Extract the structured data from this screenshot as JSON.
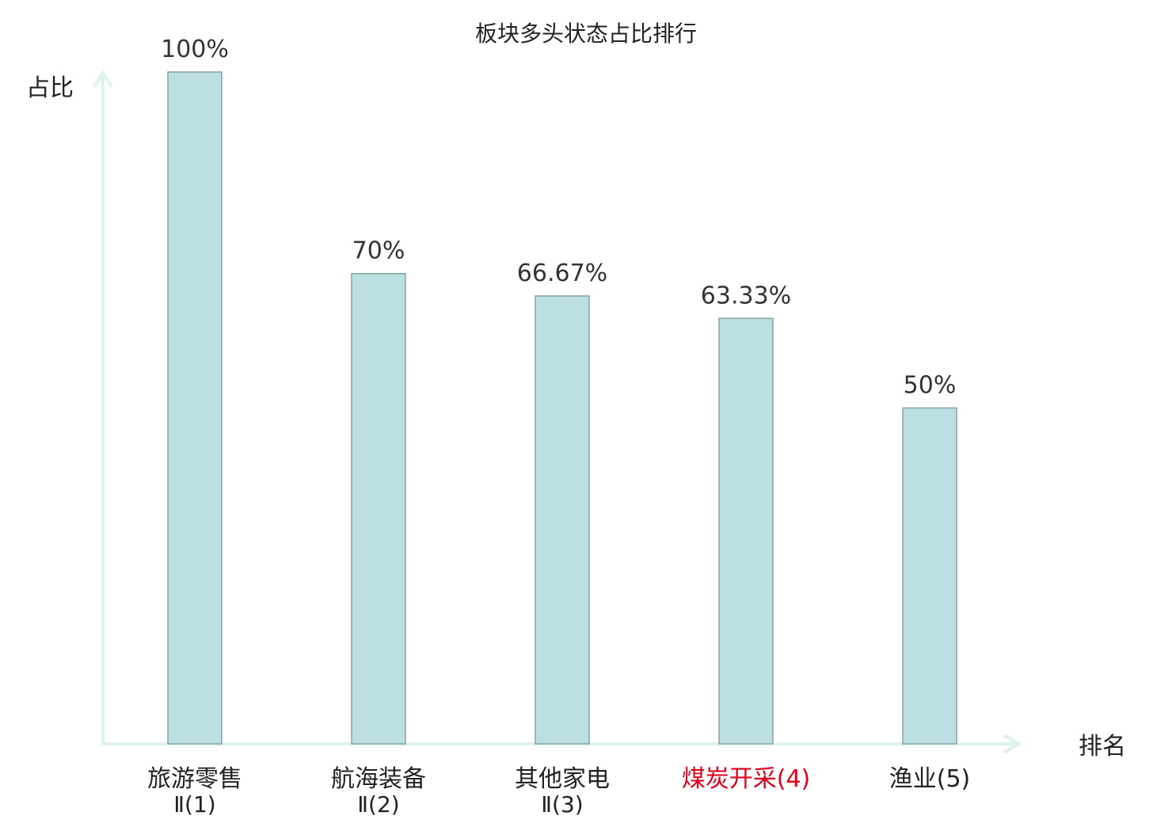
{
  "chart_data": {
    "type": "bar",
    "title": "板块多头状态占比排行",
    "ylabel": "占比",
    "xlabel": "排名",
    "ylim": [
      0,
      100
    ],
    "grid": false,
    "categories": [
      {
        "name": "旅游零售",
        "sub": "Ⅱ(1)",
        "highlight": false
      },
      {
        "name": "航海装备",
        "sub": "Ⅱ(2)",
        "highlight": false
      },
      {
        "name": "其他家电",
        "sub": "Ⅱ(3)",
        "highlight": false
      },
      {
        "name": "煤炭开采(4)",
        "sub": "",
        "highlight": true
      },
      {
        "name": "渔业(5)",
        "sub": "",
        "highlight": false
      }
    ],
    "values": [
      100,
      70,
      66.67,
      63.33,
      50
    ],
    "value_labels": [
      "100%",
      "70%",
      "66.67%",
      "63.33%",
      "50%"
    ]
  },
  "colors": {
    "bar_fill": "#bce0e2",
    "bar_stroke": "#86a3a5",
    "axis": "#dff2ef",
    "text": "#222222",
    "highlight_text": "#e0001b"
  }
}
